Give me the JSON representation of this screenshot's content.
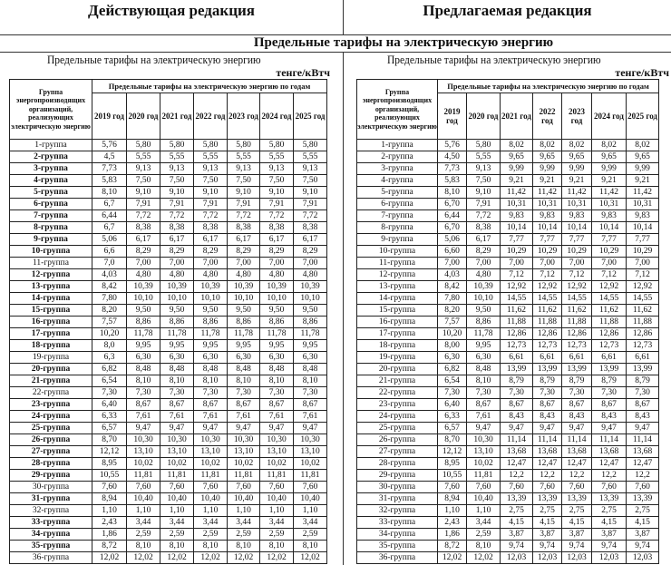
{
  "header": {
    "current_label": "Действующая  редакция",
    "proposed_label": "Предлагаемая редакция"
  },
  "section_title": "Предельные тарифы на электрическую энергию",
  "left": {
    "subtitle": "Предельные тарифы на электрическую энергию",
    "unit": "тенге/кВтч",
    "group_header": "Группа энергопроизводящих организаций, реализующих электрическую энергию",
    "span_header": "Предельные тарифы на электрическую энергию по годам",
    "years": [
      "2019 год",
      "2020 год",
      "2021 год",
      "2022 год",
      "2023 год",
      "2024 год",
      "2025 год"
    ],
    "rows": [
      {
        "group": "1-группа",
        "values": [
          "5,76",
          "5,80",
          "5,80",
          "5,80",
          "5,80",
          "5,80",
          "5,80"
        ]
      },
      {
        "group": "2-группа",
        "values": [
          "4,5",
          "5,55",
          "5,55",
          "5,55",
          "5,55",
          "5,55",
          "5,55"
        ]
      },
      {
        "group": "3-группа",
        "values": [
          "7,73",
          "9,13",
          "9,13",
          "9,13",
          "9,13",
          "9,13",
          "9,13"
        ]
      },
      {
        "group": "4-группа",
        "values": [
          "5,83",
          "7,50",
          "7,50",
          "7,50",
          "7,50",
          "7,50",
          "7,50"
        ]
      },
      {
        "group": "5-группа",
        "values": [
          "8,10",
          "9,10",
          "9,10",
          "9,10",
          "9,10",
          "9,10",
          "9,10"
        ]
      },
      {
        "group": "6-группа",
        "values": [
          "6,7",
          "7,91",
          "7,91",
          "7,91",
          "7,91",
          "7,91",
          "7,91"
        ]
      },
      {
        "group": "7-группа",
        "values": [
          "6,44",
          "7,72",
          "7,72",
          "7,72",
          "7,72",
          "7,72",
          "7,72"
        ]
      },
      {
        "group": "8-группа",
        "values": [
          "6,7",
          "8,38",
          "8,38",
          "8,38",
          "8,38",
          "8,38",
          "8,38"
        ]
      },
      {
        "group": "9-группа",
        "values": [
          "5,06",
          "6,17",
          "6,17",
          "6,17",
          "6,17",
          "6,17",
          "6,17"
        ]
      },
      {
        "group": "10-группа",
        "values": [
          "6,6",
          "8,29",
          "8,29",
          "8,29",
          "8,29",
          "8,29",
          "8,29"
        ]
      },
      {
        "group": "11-группа",
        "values": [
          "7,0",
          "7,00",
          "7,00",
          "7,00",
          "7,00",
          "7,00",
          "7,00"
        ]
      },
      {
        "group": "12-группа",
        "values": [
          "4,03",
          "4,80",
          "4,80",
          "4,80",
          "4,80",
          "4,80",
          "4,80"
        ]
      },
      {
        "group": "13-группа",
        "values": [
          "8,42",
          "10,39",
          "10,39",
          "10,39",
          "10,39",
          "10,39",
          "10,39"
        ]
      },
      {
        "group": "14-группа",
        "values": [
          "7,80",
          "10,10",
          "10,10",
          "10,10",
          "10,10",
          "10,10",
          "10,10"
        ]
      },
      {
        "group": "15-группа",
        "values": [
          "8,20",
          "9,50",
          "9,50",
          "9,50",
          "9,50",
          "9,50",
          "9,50"
        ]
      },
      {
        "group": "16-группа",
        "values": [
          "7,57",
          "8,86",
          "8,86",
          "8,86",
          "8,86",
          "8,86",
          "8,86"
        ]
      },
      {
        "group": "17-группа",
        "values": [
          "10,20",
          "11,78",
          "11,78",
          "11,78",
          "11,78",
          "11,78",
          "11,78"
        ]
      },
      {
        "group": "18-группа",
        "values": [
          "8,0",
          "9,95",
          "9,95",
          "9,95",
          "9,95",
          "9,95",
          "9,95"
        ]
      },
      {
        "group": "19-группа",
        "values": [
          "6,3",
          "6,30",
          "6,30",
          "6,30",
          "6,30",
          "6,30",
          "6,30"
        ]
      },
      {
        "group": "20-группа",
        "values": [
          "6,82",
          "8,48",
          "8,48",
          "8,48",
          "8,48",
          "8,48",
          "8,48"
        ]
      },
      {
        "group": "21-группа",
        "values": [
          "6,54",
          "8,10",
          "8,10",
          "8,10",
          "8,10",
          "8,10",
          "8,10"
        ]
      },
      {
        "group": "22-группа",
        "values": [
          "7,30",
          "7,30",
          "7,30",
          "7,30",
          "7,30",
          "7,30",
          "7,30"
        ]
      },
      {
        "group": "23-группа",
        "values": [
          "6,40",
          "8,67",
          "8,67",
          "8,67",
          "8,67",
          "8,67",
          "8,67"
        ]
      },
      {
        "group": "24-группа",
        "values": [
          "6,33",
          "7,61",
          "7,61",
          "7,61",
          "7,61",
          "7,61",
          "7,61"
        ]
      },
      {
        "group": "25-группа",
        "values": [
          "6,57",
          "9,47",
          "9,47",
          "9,47",
          "9,47",
          "9,47",
          "9,47"
        ]
      },
      {
        "group": "26-группа",
        "values": [
          "8,70",
          "10,30",
          "10,30",
          "10,30",
          "10,30",
          "10,30",
          "10,30"
        ]
      },
      {
        "group": "27-группа",
        "values": [
          "12,12",
          "13,10",
          "13,10",
          "13,10",
          "13,10",
          "13,10",
          "13,10"
        ]
      },
      {
        "group": "28-группа",
        "values": [
          "8,95",
          "10,02",
          "10,02",
          "10,02",
          "10,02",
          "10,02",
          "10,02"
        ]
      },
      {
        "group": "29-группа",
        "values": [
          "10,55",
          "11,81",
          "11,81",
          "11,81",
          "11,81",
          "11,81",
          "11,81"
        ]
      },
      {
        "group": "30-группа",
        "values": [
          "7,60",
          "7,60",
          "7,60",
          "7,60",
          "7,60",
          "7,60",
          "7,60"
        ]
      },
      {
        "group": "31-группа",
        "values": [
          "8,94",
          "10,40",
          "10,40",
          "10,40",
          "10,40",
          "10,40",
          "10,40"
        ]
      },
      {
        "group": "32-группа",
        "values": [
          "1,10",
          "1,10",
          "1,10",
          "1,10",
          "1,10",
          "1,10",
          "1,10"
        ]
      },
      {
        "group": "33-группа",
        "values": [
          "2,43",
          "3,44",
          "3,44",
          "3,44",
          "3,44",
          "3,44",
          "3,44"
        ]
      },
      {
        "group": "34-группа",
        "values": [
          "1,86",
          "2,59",
          "2,59",
          "2,59",
          "2,59",
          "2,59",
          "2,59"
        ]
      },
      {
        "group": "35-группа",
        "values": [
          "8,72",
          "8,10",
          "8,10",
          "8,10",
          "8,10",
          "8,10",
          "8,10"
        ]
      },
      {
        "group": "36-группа",
        "values": [
          "12,02",
          "12,02",
          "12,02",
          "12,02",
          "12,02",
          "12,02",
          "12,02"
        ]
      }
    ]
  },
  "right": {
    "subtitle": "Предельные тарифы на электрическую энергию",
    "unit": "тенге/кВтч",
    "group_header": "Группа энергопроизводящих организаций, реализующих электрическую энергию",
    "span_header": "Предельные тарифы на электрическую энергию по годам",
    "years": [
      "2019 год",
      "2020 год",
      "2021 год",
      "2022 год",
      "2023 год",
      "2024 год",
      "2025 год"
    ],
    "rows": [
      {
        "group": "1-группа",
        "values": [
          "5,76",
          "5,80",
          "8,02",
          "8,02",
          "8,02",
          "8,02",
          "8,02"
        ]
      },
      {
        "group": "2-группа",
        "values": [
          "4,50",
          "5,55",
          "9,65",
          "9,65",
          "9,65",
          "9,65",
          "9,65"
        ]
      },
      {
        "group": "3-группа",
        "values": [
          "7,73",
          "9,13",
          "9,99",
          "9,99",
          "9,99",
          "9,99",
          "9,99"
        ]
      },
      {
        "group": "4-группа",
        "values": [
          "5,83",
          "7,50",
          "9,21",
          "9,21",
          "9,21",
          "9,21",
          "9,21"
        ]
      },
      {
        "group": "5-группа",
        "values": [
          "8,10",
          "9,10",
          "11,42",
          "11,42",
          "11,42",
          "11,42",
          "11,42"
        ]
      },
      {
        "group": "6-группа",
        "values": [
          "6,70",
          "7,91",
          "10,31",
          "10,31",
          "10,31",
          "10,31",
          "10,31"
        ]
      },
      {
        "group": "7-группа",
        "values": [
          "6,44",
          "7,72",
          "9,83",
          "9,83",
          "9,83",
          "9,83",
          "9,83"
        ]
      },
      {
        "group": "8-группа",
        "values": [
          "6,70",
          "8,38",
          "10,14",
          "10,14",
          "10,14",
          "10,14",
          "10,14"
        ]
      },
      {
        "group": "9-группа",
        "values": [
          "5,06",
          "6,17",
          "7,77",
          "7,77",
          "7,77",
          "7,77",
          "7,77"
        ]
      },
      {
        "group": "10-группа",
        "values": [
          "6,60",
          "8,29",
          "10,29",
          "10,29",
          "10,29",
          "10,29",
          "10,29"
        ]
      },
      {
        "group": "11-группа",
        "values": [
          "7,00",
          "7,00",
          "7,00",
          "7,00",
          "7,00",
          "7,00",
          "7,00"
        ]
      },
      {
        "group": "12-группа",
        "values": [
          "4,03",
          "4,80",
          "7,12",
          "7,12",
          "7,12",
          "7,12",
          "7,12"
        ]
      },
      {
        "group": "13-группа",
        "values": [
          "8,42",
          "10,39",
          "12,92",
          "12,92",
          "12,92",
          "12,92",
          "12,92"
        ]
      },
      {
        "group": "14-группа",
        "values": [
          "7,80",
          "10,10",
          "14,55",
          "14,55",
          "14,55",
          "14,55",
          "14,55"
        ]
      },
      {
        "group": "15-группа",
        "values": [
          "8,20",
          "9,50",
          "11,62",
          "11,62",
          "11,62",
          "11,62",
          "11,62"
        ]
      },
      {
        "group": "16-группа",
        "values": [
          "7,57",
          "8,86",
          "11,88",
          "11,88",
          "11,88",
          "11,88",
          "11,88"
        ]
      },
      {
        "group": "17-группа",
        "values": [
          "10,20",
          "11,78",
          "12,86",
          "12,86",
          "12,86",
          "12,86",
          "12,86"
        ]
      },
      {
        "group": "18-группа",
        "values": [
          "8,00",
          "9,95",
          "12,73",
          "12,73",
          "12,73",
          "12,73",
          "12,73"
        ]
      },
      {
        "group": "19-группа",
        "values": [
          "6,30",
          "6,30",
          "6,61",
          "6,61",
          "6,61",
          "6,61",
          "6,61"
        ]
      },
      {
        "group": "20-группа",
        "values": [
          "6,82",
          "8,48",
          "13,99",
          "13,99",
          "13,99",
          "13,99",
          "13,99"
        ]
      },
      {
        "group": "21-группа",
        "values": [
          "6,54",
          "8,10",
          "8,79",
          "8,79",
          "8,79",
          "8,79",
          "8,79"
        ]
      },
      {
        "group": "22-группа",
        "values": [
          "7,30",
          "7,30",
          "7,30",
          "7,30",
          "7,30",
          "7,30",
          "7,30"
        ]
      },
      {
        "group": "23-группа",
        "values": [
          "6,40",
          "8,67",
          "8,67",
          "8,67",
          "8,67",
          "8,67",
          "8,67"
        ]
      },
      {
        "group": "24-группа",
        "values": [
          "6,33",
          "7,61",
          "8,43",
          "8,43",
          "8,43",
          "8,43",
          "8,43"
        ]
      },
      {
        "group": "25-группа",
        "values": [
          "6,57",
          "9,47",
          "9,47",
          "9,47",
          "9,47",
          "9,47",
          "9,47"
        ]
      },
      {
        "group": "26-группа",
        "values": [
          "8,70",
          "10,30",
          "11,14",
          "11,14",
          "11,14",
          "11,14",
          "11,14"
        ]
      },
      {
        "group": "27-группа",
        "values": [
          "12,12",
          "13,10",
          "13,68",
          "13,68",
          "13,68",
          "13,68",
          "13,68"
        ]
      },
      {
        "group": "28-группа",
        "values": [
          "8,95",
          "10,02",
          "12,47",
          "12,47",
          "12,47",
          "12,47",
          "12,47"
        ]
      },
      {
        "group": "29-группа",
        "values": [
          "10,55",
          "11,81",
          "12,2",
          "12,2",
          "12,2",
          "12,2",
          "12,2"
        ]
      },
      {
        "group": "30-группа",
        "values": [
          "7,60",
          "7,60",
          "7,60",
          "7,60",
          "7,60",
          "7,60",
          "7,60"
        ]
      },
      {
        "group": "31-группа",
        "values": [
          "8,94",
          "10,40",
          "13,39",
          "13,39",
          "13,39",
          "13,39",
          "13,39"
        ]
      },
      {
        "group": "32-группа",
        "values": [
          "1,10",
          "1,10",
          "2,75",
          "2,75",
          "2,75",
          "2,75",
          "2,75"
        ]
      },
      {
        "group": "33-группа",
        "values": [
          "2,43",
          "3,44",
          "4,15",
          "4,15",
          "4,15",
          "4,15",
          "4,15"
        ]
      },
      {
        "group": "34-группа",
        "values": [
          "1,86",
          "2,59",
          "3,87",
          "3,87",
          "3,87",
          "3,87",
          "3,87"
        ]
      },
      {
        "group": "35-группа",
        "values": [
          "8,72",
          "8,10",
          "9,74",
          "9,74",
          "9,74",
          "9,74",
          "9,74"
        ]
      },
      {
        "group": "36-группа",
        "values": [
          "12,02",
          "12,02",
          "12,03",
          "12,03",
          "12,03",
          "12,03",
          "12,03"
        ]
      }
    ]
  }
}
